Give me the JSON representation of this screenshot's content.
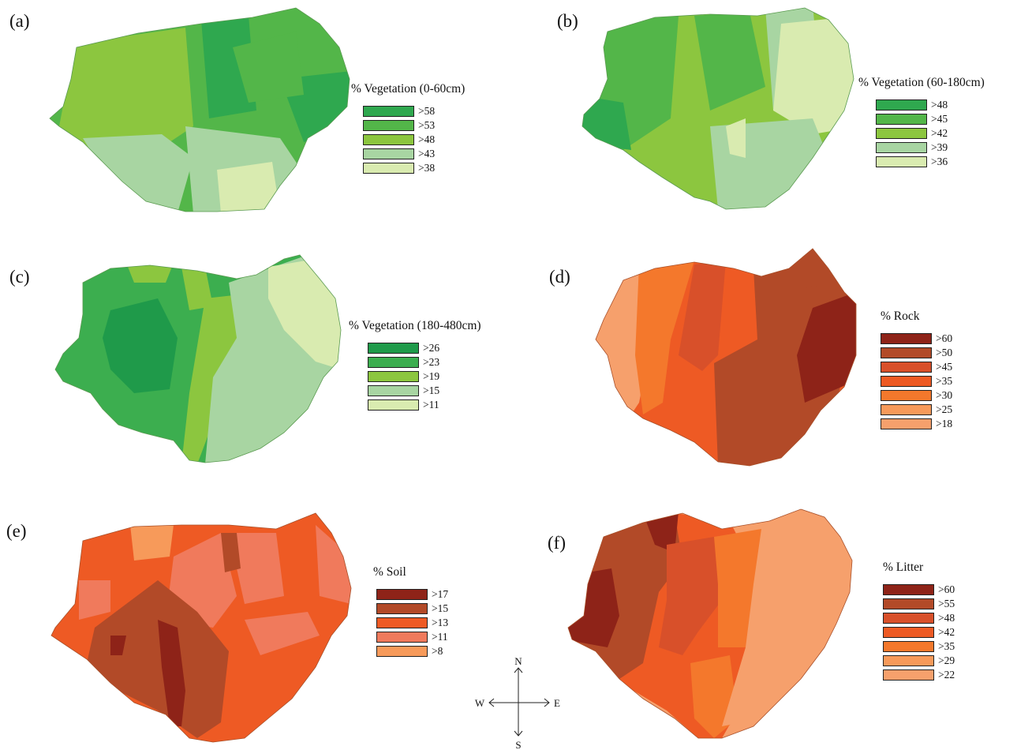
{
  "panels": [
    {
      "label": "(a)",
      "title": "% Vegetation (0-60cm)",
      "classes": [
        {
          "label": ">58",
          "color": "#2fa84f"
        },
        {
          "label": ">53",
          "color": "#53b649"
        },
        {
          "label": ">48",
          "color": "#8cc63f"
        },
        {
          "label": ">43",
          "color": "#a8d5a2"
        },
        {
          "label": ">38",
          "color": "#d9ebb0"
        }
      ]
    },
    {
      "label": "(b)",
      "title": "% Vegetation (60-180cm)",
      "classes": [
        {
          "label": ">48",
          "color": "#2fa84f"
        },
        {
          "label": ">45",
          "color": "#53b649"
        },
        {
          "label": ">42",
          "color": "#8cc63f"
        },
        {
          "label": ">39",
          "color": "#a8d5a2"
        },
        {
          "label": ">36",
          "color": "#d9ebb0"
        }
      ]
    },
    {
      "label": "(c)",
      "title": "% Vegetation (180-480cm)",
      "classes": [
        {
          "label": ">26",
          "color": "#1f9a4a"
        },
        {
          "label": ">23",
          "color": "#3cae4f"
        },
        {
          "label": ">19",
          "color": "#8cc63f"
        },
        {
          "label": ">15",
          "color": "#a8d5a2"
        },
        {
          "label": ">11",
          "color": "#d9ebb0"
        }
      ]
    },
    {
      "label": "(d)",
      "title": "% Rock",
      "classes": [
        {
          "label": ">60",
          "color": "#8e2318"
        },
        {
          "label": ">50",
          "color": "#b24a28"
        },
        {
          "label": ">45",
          "color": "#d8502a"
        },
        {
          "label": ">35",
          "color": "#ee5a24"
        },
        {
          "label": ">30",
          "color": "#f4782c"
        },
        {
          "label": ">25",
          "color": "#f79a5a"
        },
        {
          "label": ">18",
          "color": "#f6a06c"
        }
      ]
    },
    {
      "label": "(e)",
      "title": "% Soil",
      "classes": [
        {
          "label": ">17",
          "color": "#8e2318"
        },
        {
          "label": ">15",
          "color": "#b24a28"
        },
        {
          "label": ">13",
          "color": "#ee5a24"
        },
        {
          "label": ">11",
          "color": "#f07a5c"
        },
        {
          "label": ">8",
          "color": "#f79a5a"
        }
      ]
    },
    {
      "label": "(f)",
      "title": "% Litter",
      "classes": [
        {
          "label": ">60",
          "color": "#8e2318"
        },
        {
          "label": ">55",
          "color": "#b24a28"
        },
        {
          "label": ">48",
          "color": "#d8502a"
        },
        {
          "label": ">42",
          "color": "#ee5a24"
        },
        {
          "label": ">35",
          "color": "#f4782c"
        },
        {
          "label": ">29",
          "color": "#f79a5a"
        },
        {
          "label": ">22",
          "color": "#f6a06c"
        }
      ]
    }
  ],
  "compass": {
    "north": "N",
    "south": "S",
    "east": "E",
    "west": "W"
  }
}
